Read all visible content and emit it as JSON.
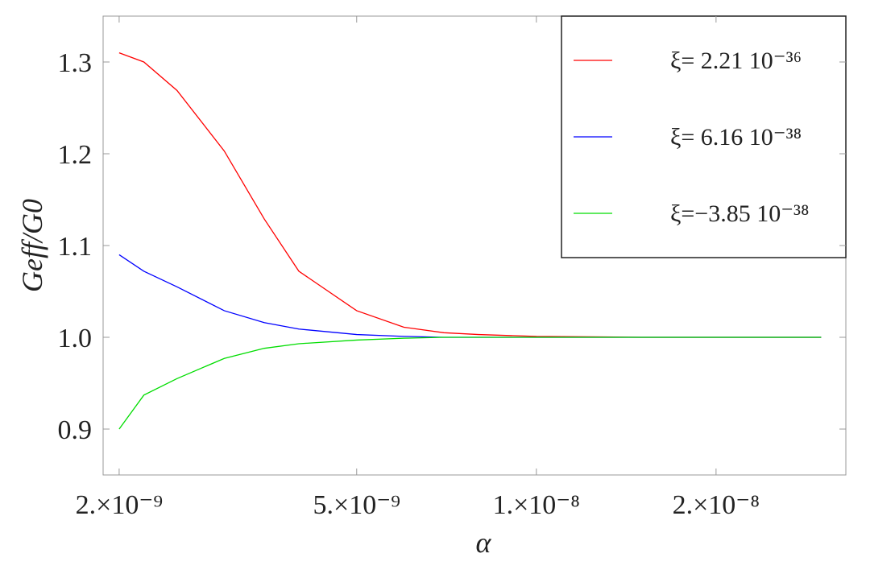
{
  "chart_data": {
    "type": "line",
    "x_label": "α",
    "y_label": "Geff/G0",
    "log_x": true,
    "grid": false,
    "legend": "top-right",
    "xlim": [
      1.88e-09,
      3.3e-08
    ],
    "ylim": [
      0.85,
      1.35
    ],
    "xticks": [
      {
        "value": 2e-09,
        "label": "2.×10⁻⁹"
      },
      {
        "value": 5e-09,
        "label": "5.×10⁻⁹"
      },
      {
        "value": 1e-08,
        "label": "1.×10⁻⁸"
      },
      {
        "value": 2e-08,
        "label": "2.×10⁻⁸"
      }
    ],
    "yticks": [
      {
        "value": 0.9,
        "label": "0.9"
      },
      {
        "value": 1,
        "label": "1.0"
      },
      {
        "value": 1.1,
        "label": "1.1"
      },
      {
        "value": 1.2,
        "label": "1.2"
      },
      {
        "value": 1.3,
        "label": "1.3"
      }
    ],
    "x": [
      2e-09,
      2.2e-09,
      2.5e-09,
      3e-09,
      3.5e-09,
      4e-09,
      5e-09,
      6e-09,
      7e-09,
      8e-09,
      1e-08,
      1.5e-08,
      2e-08,
      3e-08
    ],
    "series": [
      {
        "name": "ξ=  2.21 10⁻³⁶",
        "color": "#ff0000",
        "values": [
          1.31,
          1.3,
          1.269,
          1.203,
          1.129,
          1.072,
          1.029,
          1.011,
          1.005,
          1.003,
          1.001,
          1.0,
          1.0,
          1.0
        ]
      },
      {
        "name": "ξ=  6.16 10⁻³⁸",
        "color": "#0000ff",
        "values": [
          1.09,
          1.072,
          1.055,
          1.029,
          1.016,
          1.009,
          1.003,
          1.001,
          1.0,
          1.0,
          1.0,
          1.0,
          1.0,
          1.0
        ]
      },
      {
        "name": "ξ=−3.85 10⁻³⁸",
        "color": "#00dd00",
        "values": [
          0.9,
          0.937,
          0.955,
          0.977,
          0.988,
          0.993,
          0.997,
          0.999,
          1.0,
          1.0,
          1.0,
          1.0,
          1.0,
          1.0
        ]
      }
    ]
  }
}
